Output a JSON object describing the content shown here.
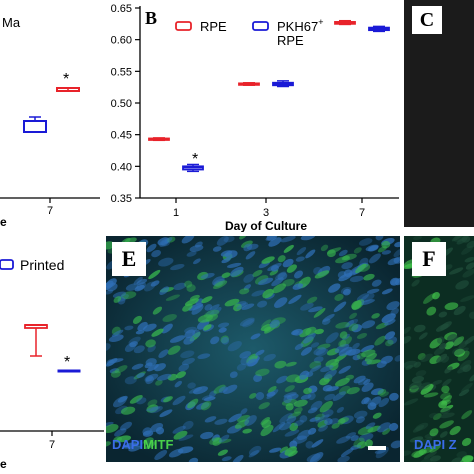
{
  "colors": {
    "rpe": "#e8232a",
    "pkh": "#1a1ad6",
    "axis": "#000000",
    "panel_c_bg": "#1b1b1b",
    "micro_bg": "#0b2b38",
    "nuclei": "#2f6fb5",
    "cells": "#36b04e",
    "dapi_text": "#3a6de8",
    "mitf_text": "#49d04a"
  },
  "panel_a": {
    "title_fragment": "Ma",
    "axis_label_fragment": "e",
    "tick_label": "7",
    "significance": "*"
  },
  "panel_d": {
    "legend_label": "Printed",
    "axis_label_fragment": "e",
    "tick_label": "7",
    "significance": "*"
  },
  "panel_c": {
    "letter": "C"
  },
  "panel_e": {
    "letter": "E",
    "stain_dapi": "DAPI",
    "stain_mitf": "MITF"
  },
  "panel_f": {
    "letter": "F",
    "stain_fragment": "DAPI Z"
  },
  "chart_data": {
    "type": "box",
    "panel_letter": "B",
    "xlabel": "Day of Culture",
    "ylabel": "",
    "ylim": [
      0.35,
      0.65
    ],
    "yticks": [
      "0.35",
      "0.40",
      "0.45",
      "0.50",
      "0.55",
      "0.60",
      "0.65"
    ],
    "categories": [
      "1",
      "3",
      "7"
    ],
    "legend": {
      "placement": "top",
      "items": [
        "RPE",
        "PKH67+ RPE"
      ]
    },
    "legend_text": {
      "rpe": "RPE",
      "pkh_line1": "PKH67",
      "pkh_sup": "+",
      "pkh_line2": "RPE"
    },
    "annotations": [
      {
        "category": "1",
        "series": "PKH67+ RPE",
        "text": "*"
      }
    ],
    "series": [
      {
        "name": "RPE",
        "key": "rpe",
        "values": [
          {
            "min": 0.441,
            "q1": 0.442,
            "median": 0.443,
            "q3": 0.444,
            "max": 0.445
          },
          {
            "min": 0.528,
            "q1": 0.529,
            "median": 0.53,
            "q3": 0.531,
            "max": 0.532
          },
          {
            "min": 0.624,
            "q1": 0.625,
            "median": 0.627,
            "q3": 0.628,
            "max": 0.63
          }
        ]
      },
      {
        "name": "PKH67+ RPE",
        "key": "pkh",
        "values": [
          {
            "min": 0.392,
            "q1": 0.395,
            "median": 0.398,
            "q3": 0.4,
            "max": 0.403
          },
          {
            "min": 0.526,
            "q1": 0.528,
            "median": 0.53,
            "q3": 0.532,
            "max": 0.535
          },
          {
            "min": 0.613,
            "q1": 0.615,
            "median": 0.617,
            "q3": 0.619,
            "max": 0.621
          }
        ]
      }
    ]
  }
}
